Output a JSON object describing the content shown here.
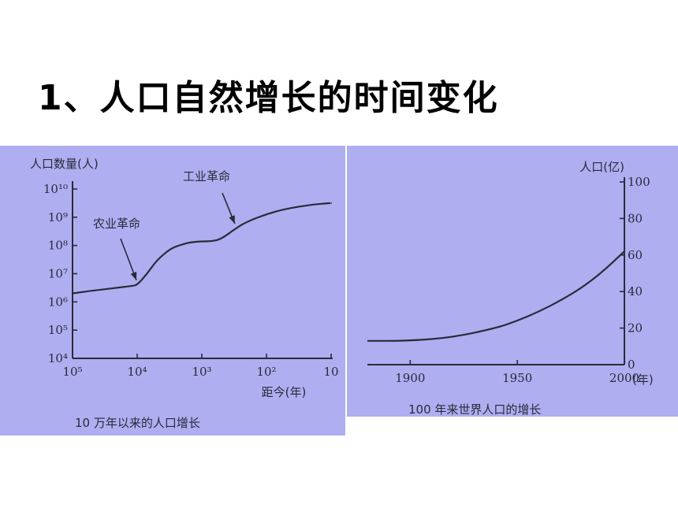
{
  "title": "1、人口自然增长的时间变化",
  "chart_data": [
    {
      "type": "line",
      "caption": "10 万年以来的人口增长",
      "ylabel": "人口数量(人)",
      "xlabel": "距今(年)",
      "x_scale": "log-reversed",
      "y_scale": "log",
      "xlim": [
        100000,
        10
      ],
      "ylim": [
        10000,
        10000000000
      ],
      "x_tick_labels": [
        "10⁵",
        "10⁴",
        "10³",
        "10²",
        "10"
      ],
      "y_tick_labels": [
        "10¹⁰",
        "10⁹",
        "10⁸",
        "10⁷",
        "10⁶",
        "10⁵",
        "10⁴"
      ],
      "x_ticks": [
        100000,
        10000,
        1000,
        100,
        10
      ],
      "y_ticks": [
        10000000000,
        1000000000,
        100000000,
        10000000,
        1000000,
        100000,
        10000
      ],
      "series": [
        {
          "x": [
            100000,
            50000,
            25000,
            12000,
            10000,
            7000,
            5000,
            3000,
            2000,
            1500,
            1000,
            700,
            500,
            300,
            200,
            100,
            50,
            20,
            10
          ],
          "y": [
            2000000,
            2500000,
            3000000,
            3700000,
            4000000,
            10000000,
            30000000,
            80000000,
            110000000,
            130000000,
            140000000,
            140000000,
            170000000,
            400000000,
            700000000,
            1300000000,
            2000000000,
            2800000000,
            3200000000
          ]
        }
      ],
      "annotations": [
        {
          "text": "农业革命",
          "x": 10000,
          "y": 4000000
        },
        {
          "text": "工业革命",
          "x": 300,
          "y": 400000000
        }
      ]
    },
    {
      "type": "line",
      "caption": "100 年来世界人口的增长",
      "ylabel": "人口(亿)",
      "xlabel": "(年)",
      "xlim": [
        1880,
        2000
      ],
      "ylim": [
        0,
        100
      ],
      "x_ticks": [
        1900,
        1950,
        2000
      ],
      "y_ticks": [
        0,
        20,
        40,
        60,
        80,
        100
      ],
      "series": [
        {
          "x": [
            1880,
            1900,
            1920,
            1940,
            1950,
            1960,
            1970,
            1980,
            1990,
            2000
          ],
          "y": [
            13,
            13,
            15,
            20,
            24,
            29,
            35,
            42,
            51,
            62
          ]
        }
      ]
    }
  ]
}
